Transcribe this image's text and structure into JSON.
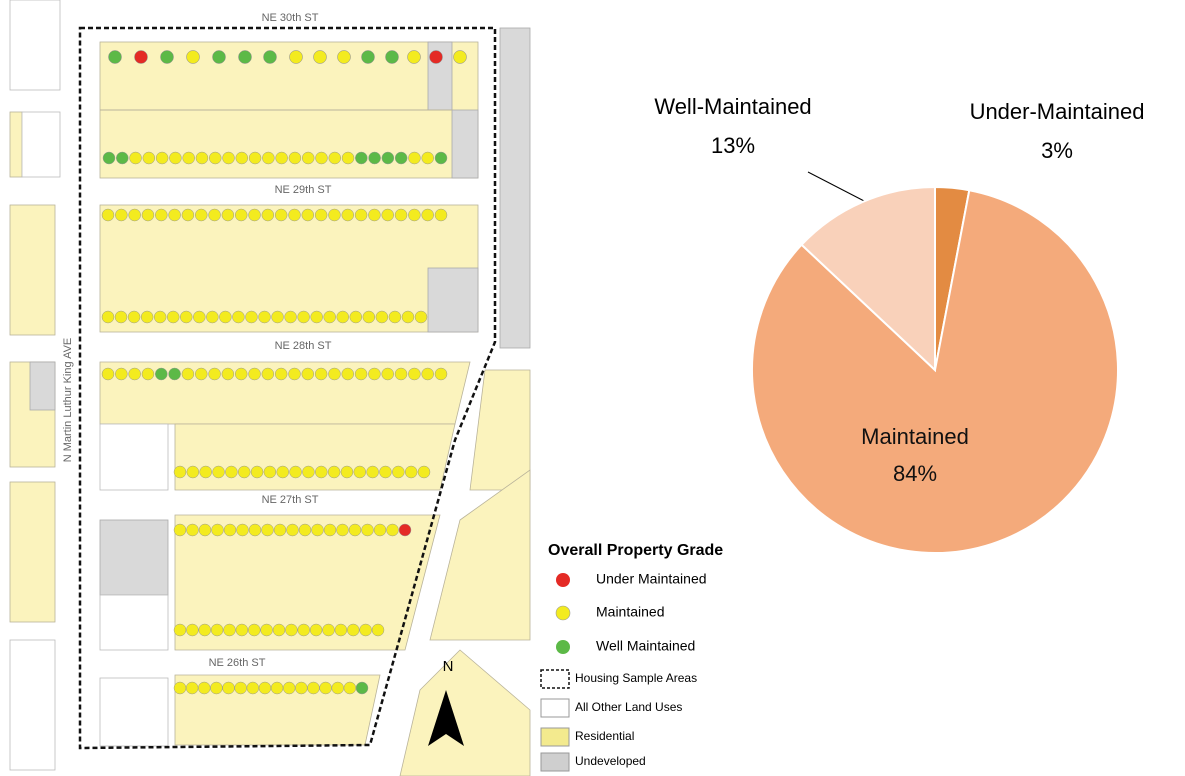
{
  "chart_data": {
    "type": "pie",
    "categories": [
      "Under-Maintained",
      "Maintained",
      "Well-Maintained"
    ],
    "values": [
      3,
      84,
      13
    ],
    "value_labels": [
      "3%",
      "84%",
      "13%"
    ],
    "colors": [
      "#e38b42",
      "#f4aa7b",
      "#f9d1ba"
    ]
  },
  "map": {
    "streets": [
      "NE 30th ST",
      "NE 29th ST",
      "NE 28th ST",
      "NE 27th ST",
      "NE 26th ST"
    ],
    "avenue": "N Martin Luthur King AVE",
    "north": "N",
    "legend": {
      "title": "Overall Property Grade",
      "items": [
        "Under Maintained",
        "Maintained",
        "Well Maintained",
        "Housing Sample Areas",
        "All Other Land Uses",
        "Residential",
        "Undeveloped"
      ]
    }
  }
}
